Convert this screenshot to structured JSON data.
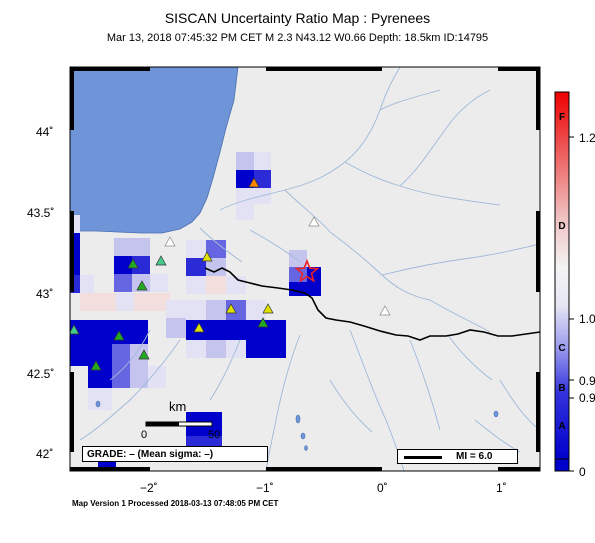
{
  "header": {
    "title": "SISCAN Uncertainty Ratio Map : Pyrenees",
    "subtitle": "Mar 13, 2018 07:45:32 PM CET   M 2.3   N43.12 W0.66   Depth: 18.5km   ID:14795"
  },
  "footer": {
    "text": "Map Version 1 Processed 2018-03-13 07:48:05 PM CET"
  },
  "grade": {
    "text": "GRADE: – (Mean sigma: –)"
  },
  "mi_legend": {
    "text": "MI = 6.0"
  },
  "scalebar": {
    "unit": "km",
    "zero": "0",
    "fifty": "50"
  },
  "axes": {
    "lat_labels": [
      "44˚",
      "43.5˚",
      "43˚",
      "42.5˚",
      "42˚"
    ],
    "lon_labels": [
      "−2˚",
      "−1˚",
      "0˚",
      "1˚"
    ]
  },
  "colorbar": {
    "value_labels": [
      "1.2",
      "1.0",
      "0.9",
      "0.9",
      "0"
    ],
    "grade_letters": [
      "F",
      "D",
      "C",
      "B",
      "A"
    ]
  },
  "colors": {
    "land": "#ececec",
    "sea": "#6f95d8",
    "river": "#9eb8d8",
    "border": "#000000",
    "cell_high": "#0000cc",
    "epicenter": "#ee2222"
  },
  "stations": [
    {
      "color": "#e0e000"
    },
    {
      "color": "#e0e000"
    },
    {
      "color": "#e0e000"
    },
    {
      "color": "#e0e000"
    },
    {
      "color": "#22aa22"
    },
    {
      "color": "#22aa22"
    },
    {
      "color": "#22aa22"
    },
    {
      "color": "#22aa22"
    },
    {
      "color": "#22aa22"
    },
    {
      "color": "#22aa22"
    },
    {
      "color": "#44cc88"
    },
    {
      "color": "#44cc88"
    },
    {
      "color": "#ff8800"
    },
    {
      "color": "#ffffff"
    },
    {
      "color": "#ffffff"
    },
    {
      "color": "#ffffff"
    }
  ]
}
